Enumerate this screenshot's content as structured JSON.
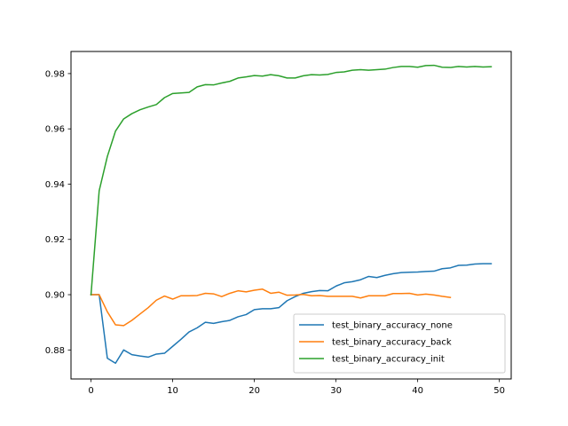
{
  "chart_data": {
    "type": "line",
    "title": "",
    "xlabel": "",
    "ylabel": "",
    "xlim": [
      -2.45,
      51.45
    ],
    "ylim": [
      0.8695,
      0.988
    ],
    "xticks": [
      0,
      10,
      20,
      30,
      40,
      50
    ],
    "xtick_labels": [
      "0",
      "10",
      "20",
      "30",
      "40",
      "50"
    ],
    "yticks": [
      0.88,
      0.9,
      0.92,
      0.94,
      0.96,
      0.98
    ],
    "ytick_labels": [
      "0.88",
      "0.90",
      "0.92",
      "0.94",
      "0.96",
      "0.98"
    ],
    "grid": false,
    "legend_position": "lower-right",
    "series": [
      {
        "name": "test_binary_accuracy_none",
        "color": "#1f77b4",
        "x": [
          0,
          1,
          2,
          3,
          4,
          5,
          6,
          7,
          8,
          9,
          10,
          11,
          12,
          13,
          14,
          15,
          16,
          17,
          18,
          19,
          20,
          21,
          22,
          23,
          24,
          25,
          26,
          27,
          28,
          29,
          30,
          31,
          32,
          33,
          34,
          35,
          36,
          37,
          38,
          39,
          40,
          41,
          42,
          43,
          44,
          45,
          46,
          47,
          48,
          49
        ],
        "values": [
          0.9,
          0.9,
          0.877,
          0.8752,
          0.88,
          0.8783,
          0.8778,
          0.8774,
          0.8785,
          0.8788,
          0.8813,
          0.8838,
          0.8865,
          0.888,
          0.89,
          0.8896,
          0.8902,
          0.8907,
          0.892,
          0.8928,
          0.8946,
          0.8949,
          0.8949,
          0.8953,
          0.8978,
          0.8993,
          0.9005,
          0.9011,
          0.9015,
          0.9014,
          0.9031,
          0.9043,
          0.9047,
          0.9054,
          0.9066,
          0.9062,
          0.907,
          0.9076,
          0.908,
          0.9081,
          0.9082,
          0.9084,
          0.9085,
          0.9094,
          0.9097,
          0.9106,
          0.9107,
          0.9111,
          0.9112,
          0.9112
        ]
      },
      {
        "name": "test_binary_accuracy_back",
        "color": "#ff7f0e",
        "x": [
          0,
          1,
          2,
          3,
          4,
          5,
          6,
          7,
          8,
          9,
          10,
          11,
          12,
          13,
          14,
          15,
          16,
          17,
          18,
          19,
          20,
          21,
          22,
          23,
          24,
          25,
          26,
          27,
          28,
          29,
          30,
          31,
          32,
          33,
          34,
          35,
          36,
          37,
          38,
          39,
          40,
          41,
          42,
          43,
          44
        ],
        "values": [
          0.9,
          0.9,
          0.8938,
          0.8891,
          0.8888,
          0.8907,
          0.893,
          0.8953,
          0.898,
          0.8995,
          0.8984,
          0.8996,
          0.8996,
          0.8997,
          0.9005,
          0.9003,
          0.8993,
          0.9005,
          0.9014,
          0.901,
          0.9016,
          0.902,
          0.9005,
          0.9009,
          0.8998,
          0.8999,
          0.9001,
          0.8996,
          0.8997,
          0.8994,
          0.8994,
          0.8994,
          0.8994,
          0.8988,
          0.8996,
          0.8996,
          0.8996,
          0.9004,
          0.9004,
          0.9005,
          0.8999,
          0.9002,
          0.8999,
          0.8994,
          0.899
        ]
      },
      {
        "name": "test_binary_accuracy_init",
        "color": "#2ca02c",
        "x": [
          0,
          1,
          2,
          3,
          4,
          5,
          6,
          7,
          8,
          9,
          10,
          11,
          12,
          13,
          14,
          15,
          16,
          17,
          18,
          19,
          20,
          21,
          22,
          23,
          24,
          25,
          26,
          27,
          28,
          29,
          30,
          31,
          32,
          33,
          34,
          35,
          36,
          37,
          38,
          39,
          40,
          41,
          42,
          43,
          44,
          45,
          46,
          47,
          48,
          49
        ],
        "values": [
          0.9,
          0.9376,
          0.95,
          0.9592,
          0.9636,
          0.9655,
          0.9669,
          0.9679,
          0.9688,
          0.9713,
          0.9728,
          0.973,
          0.9732,
          0.9752,
          0.976,
          0.9759,
          0.9766,
          0.9772,
          0.9784,
          0.9788,
          0.9793,
          0.9791,
          0.9796,
          0.9792,
          0.9784,
          0.9784,
          0.9792,
          0.9796,
          0.9795,
          0.9797,
          0.9804,
          0.9806,
          0.9812,
          0.9814,
          0.9812,
          0.9814,
          0.9816,
          0.9822,
          0.9826,
          0.9826,
          0.9823,
          0.9829,
          0.983,
          0.9823,
          0.9822,
          0.9826,
          0.9824,
          0.9826,
          0.9824,
          0.9825
        ]
      }
    ]
  }
}
